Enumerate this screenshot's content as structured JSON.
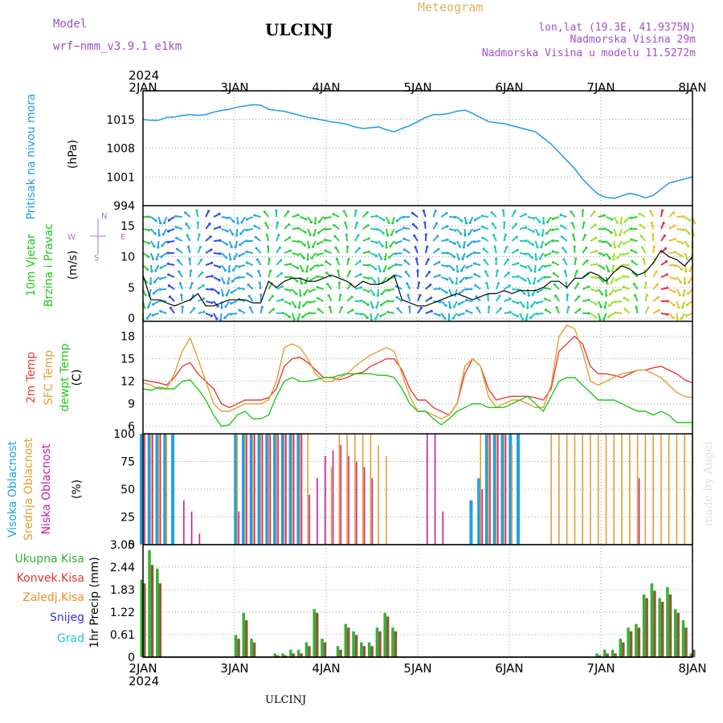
{
  "header": {
    "model_label": "Model",
    "model_value": "wrf−nmm_v3.9.1  e1km",
    "station": "ULCINJ",
    "title": "Meteogram",
    "lonlat": "lon,lat (19.3E, 41.9375N)",
    "elevation": "Nadmorska Visina 29m",
    "model_elevation": "Nadmorska Visina u modelu 11.5272m"
  },
  "footer": {
    "station": "ULCINJ",
    "watermark": "made by Angel"
  },
  "colors": {
    "pressure": "#1e9be6",
    "temp2m": "#e63c3c",
    "sfc": "#e0a030",
    "dew": "#1ec81e",
    "high": "#1ea0e6",
    "mid": "#e0a030",
    "low": "#c81e96",
    "total": "#32b432",
    "conv": "#e63232",
    "frz": "#f08c28",
    "snow": "#3232e6",
    "grad": "#1ec8c8"
  },
  "chart_data": [
    {
      "type": "line",
      "panel": "pressure",
      "year": "2024",
      "x_ticks": [
        "2JAN",
        "3JAN",
        "4JAN",
        "5JAN",
        "6JAN",
        "7JAN",
        "8JAN"
      ],
      "ylabel": [
        "Pritisak na nivou mora",
        "(hPa)"
      ],
      "y_ticks": [
        994,
        1001,
        1008,
        1015
      ],
      "ylim": [
        994,
        1022
      ],
      "series": [
        {
          "values": [
            1015,
            1014.8,
            1014.8,
            1015.5,
            1015.6,
            1016,
            1016.2,
            1016,
            1016.2,
            1016.8,
            1017.2,
            1017.5,
            1018,
            1018.3,
            1018.6,
            1018.5,
            1017.5,
            1017.2,
            1017,
            1016.5,
            1016,
            1015.5,
            1015.2,
            1014.8,
            1014.4,
            1014.2,
            1013.8,
            1013.2,
            1012.8,
            1013,
            1013.2,
            1012.5,
            1012,
            1012.8,
            1013.5,
            1014.5,
            1015.5,
            1016.2,
            1016.2,
            1016.5,
            1017,
            1017.3,
            1016.5,
            1015.5,
            1014.5,
            1014.2,
            1014,
            1013.5,
            1013,
            1012.5,
            1012,
            1010.5,
            1009,
            1007,
            1005,
            1003,
            1000.5,
            998.5,
            996.8,
            996,
            995.8,
            996.4,
            997,
            996.6,
            995.9,
            996.5,
            998,
            999.5,
            1000,
            1000.5,
            1001
          ]
        }
      ]
    },
    {
      "type": "line",
      "panel": "wind",
      "ylabel": [
        "10m Vjetar",
        "Brzina i Pravac",
        "(m/s)"
      ],
      "compass": [
        "N",
        "W",
        "E",
        "S"
      ],
      "y_ticks": [
        0,
        5,
        10,
        15
      ],
      "ylim": [
        -0.5,
        17.5
      ],
      "series": [
        {
          "values": [
            7,
            3,
            3,
            2.5,
            2,
            2.5,
            3,
            4,
            2,
            2,
            2.5,
            3,
            3,
            3,
            2.5,
            2.5,
            6,
            5,
            6,
            6.5,
            6.5,
            6,
            6,
            6.5,
            7,
            6.5,
            6,
            5,
            6,
            5.5,
            5.5,
            6,
            7,
            3,
            2.5,
            2,
            2,
            2.5,
            3,
            3.5,
            4,
            3.5,
            3,
            3.5,
            4,
            4,
            4.5,
            4,
            4.5,
            4.5,
            4.5,
            5,
            6,
            6,
            5,
            6.5,
            6.5,
            7.5,
            7,
            6,
            7.5,
            8.5,
            8,
            7,
            7.5,
            9,
            11,
            10,
            9.5,
            8.5,
            10
          ]
        }
      ]
    },
    {
      "type": "line",
      "panel": "temperature",
      "ylabel": [
        "2m Temp",
        "SFC Temp",
        "dewpt Temp",
        "(C)"
      ],
      "y_ticks": [
        6,
        9,
        12,
        15,
        18
      ],
      "ylim": [
        5,
        20
      ],
      "series": [
        {
          "name": "2m Temp",
          "values": [
            12.2,
            12,
            11.8,
            11.5,
            12.5,
            14,
            14.5,
            13,
            12,
            11,
            9,
            8.5,
            9,
            9.5,
            9.5,
            9.5,
            9.8,
            11,
            14,
            15,
            15.2,
            14.5,
            13.5,
            12.5,
            12.5,
            12.2,
            12.5,
            13,
            13.2,
            14,
            14.5,
            15,
            15,
            13.5,
            11,
            9.5,
            9.5,
            8.5,
            8,
            7.5,
            9,
            13,
            15,
            14,
            11,
            9.5,
            9.8,
            10,
            10,
            10,
            9.8,
            9.5,
            11,
            16,
            17,
            18,
            17,
            14,
            13,
            13,
            12.8,
            12.5,
            13,
            13.5,
            13.5,
            13.8,
            14,
            13.5,
            13,
            12.2,
            11.8
          ]
        },
        {
          "name": "SFC Temp",
          "values": [
            11.8,
            11.5,
            11,
            11,
            13,
            16,
            17.8,
            15,
            12,
            9,
            8,
            8,
            8.5,
            9,
            9,
            9,
            9.5,
            12,
            16.5,
            17,
            16.5,
            15,
            13,
            12,
            12,
            12.5,
            13,
            14,
            14.8,
            15.5,
            16,
            16.5,
            16,
            13,
            10,
            8,
            8,
            7.5,
            7,
            7.5,
            9,
            14,
            15,
            14,
            10,
            8.5,
            9,
            9.5,
            9.5,
            9,
            8.5,
            8.5,
            11.5,
            18,
            19.5,
            19,
            16,
            12,
            11.5,
            12,
            12.5,
            13,
            13.2,
            13.5,
            13.5,
            13,
            12.5,
            11.5,
            10.5,
            10,
            9.8
          ]
        },
        {
          "name": "dewpt Temp",
          "values": [
            11,
            10.8,
            11.2,
            11,
            11,
            12,
            12.2,
            11,
            9.5,
            7.5,
            6,
            6.2,
            7.5,
            8,
            7,
            7,
            7.5,
            10,
            12,
            12.5,
            12,
            12,
            12.2,
            12.5,
            12.5,
            12.8,
            13,
            13,
            13,
            13,
            12.8,
            12.8,
            12.5,
            11,
            9,
            8,
            8,
            7,
            6.2,
            7,
            8,
            8.5,
            9,
            9,
            8.5,
            8.5,
            8.5,
            9,
            9.5,
            10,
            9,
            8,
            10,
            12,
            12.5,
            12.5,
            11.5,
            10.5,
            9.5,
            9.5,
            9.5,
            9,
            8.5,
            8,
            8,
            7.5,
            8,
            7.5,
            6.5,
            6.5,
            6.5
          ]
        }
      ]
    },
    {
      "type": "bar",
      "panel": "clouds",
      "ylabel": [
        "Visoka Oblacnost",
        "Srednja Oblacnost",
        "Niska Oblacnost",
        "(%)"
      ],
      "y_ticks": [
        0,
        25,
        50,
        75,
        100
      ],
      "ylim": [
        0,
        100
      ],
      "series": [
        {
          "name": "Visoka Oblacnost",
          "values": [
            100,
            100,
            100,
            100,
            100,
            0,
            0,
            0,
            0,
            0,
            0,
            0,
            100,
            100,
            100,
            100,
            100,
            100,
            100,
            100,
            100,
            0,
            0,
            0,
            0,
            0,
            0,
            0,
            0,
            0,
            0,
            0,
            0,
            0,
            0,
            0,
            0,
            0,
            0,
            0,
            0,
            0,
            40,
            60,
            100,
            100,
            100,
            100,
            100,
            0,
            0,
            0,
            0,
            0,
            0,
            0,
            0,
            0,
            0,
            0,
            0,
            0,
            0,
            0,
            0,
            0,
            0,
            0,
            0,
            0,
            0
          ]
        },
        {
          "name": "Srednja Oblacnost",
          "values": [
            100,
            100,
            100,
            100,
            0,
            0,
            0,
            0,
            0,
            0,
            0,
            0,
            100,
            100,
            100,
            100,
            100,
            100,
            100,
            100,
            100,
            100,
            0,
            0,
            70,
            100,
            100,
            100,
            100,
            100,
            90,
            80,
            0,
            0,
            0,
            0,
            0,
            0,
            0,
            0,
            0,
            0,
            0,
            100,
            100,
            100,
            100,
            90,
            0,
            0,
            0,
            0,
            100,
            100,
            100,
            100,
            100,
            100,
            100,
            100,
            100,
            100,
            100,
            100,
            100,
            100,
            100,
            100,
            100,
            100,
            100
          ]
        },
        {
          "name": "Niska Oblacnost",
          "values": [
            100,
            100,
            100,
            0,
            0,
            40,
            30,
            10,
            0,
            0,
            0,
            0,
            30,
            100,
            100,
            100,
            100,
            100,
            100,
            100,
            100,
            45,
            60,
            80,
            85,
            90,
            80,
            75,
            70,
            60,
            0,
            0,
            0,
            0,
            0,
            0,
            100,
            100,
            30,
            0,
            0,
            0,
            0,
            50,
            100,
            100,
            100,
            0,
            0,
            0,
            0,
            0,
            0,
            0,
            0,
            0,
            0,
            0,
            0,
            0,
            0,
            0,
            0,
            60,
            0,
            0,
            0,
            0,
            0,
            0,
            0
          ]
        }
      ]
    },
    {
      "type": "bar",
      "panel": "precipitation",
      "ylabel": [
        "1hr Precip (mm)"
      ],
      "legend": [
        "Ukupna Kisa",
        "Konvek.Kisa",
        "Zaledj.Kisa",
        "Snijeg",
        "Grad"
      ],
      "y_ticks": [
        0,
        0.61,
        1.22,
        1.83,
        2.44,
        3.05
      ],
      "ylim": [
        0,
        3.05
      ],
      "series": [
        {
          "name": "Ukupna Kisa",
          "values": [
            2.1,
            2.9,
            2.4,
            0,
            0,
            0,
            0,
            0,
            0,
            0,
            0,
            0,
            0.6,
            1.2,
            0.5,
            0,
            0,
            0.1,
            0.1,
            0.2,
            0.2,
            0.4,
            1.3,
            0.5,
            0,
            0.3,
            0.9,
            0.7,
            0.4,
            0.4,
            0.8,
            1.2,
            0.8,
            0,
            0,
            0,
            0,
            0,
            0,
            0,
            0,
            0,
            0,
            0,
            0,
            0,
            0,
            0,
            0,
            0,
            0,
            0,
            0,
            0,
            0,
            0,
            0,
            0,
            0.1,
            0.2,
            0.2,
            0.5,
            0.8,
            0.9,
            1.7,
            2.0,
            1.6,
            1.9,
            1.3,
            1.0,
            0.1
          ]
        },
        {
          "name": "Konvek.Kisa",
          "values": [
            2.0,
            2.5,
            2.0,
            0,
            0,
            0,
            0,
            0,
            0,
            0,
            0,
            0,
            0.5,
            1.0,
            0.4,
            0,
            0,
            0.05,
            0.05,
            0.1,
            0.1,
            0.3,
            1.2,
            0.4,
            0,
            0.2,
            0.8,
            0.6,
            0.3,
            0.3,
            0.7,
            1.1,
            0.7,
            0,
            0,
            0,
            0,
            0,
            0,
            0,
            0,
            0,
            0,
            0,
            0,
            0,
            0,
            0,
            0,
            0,
            0,
            0,
            0,
            0,
            0,
            0,
            0,
            0,
            0.05,
            0.1,
            0.1,
            0.4,
            0.7,
            0.8,
            1.6,
            1.8,
            1.5,
            1.7,
            1.2,
            0.8,
            0.2
          ]
        }
      ]
    }
  ]
}
